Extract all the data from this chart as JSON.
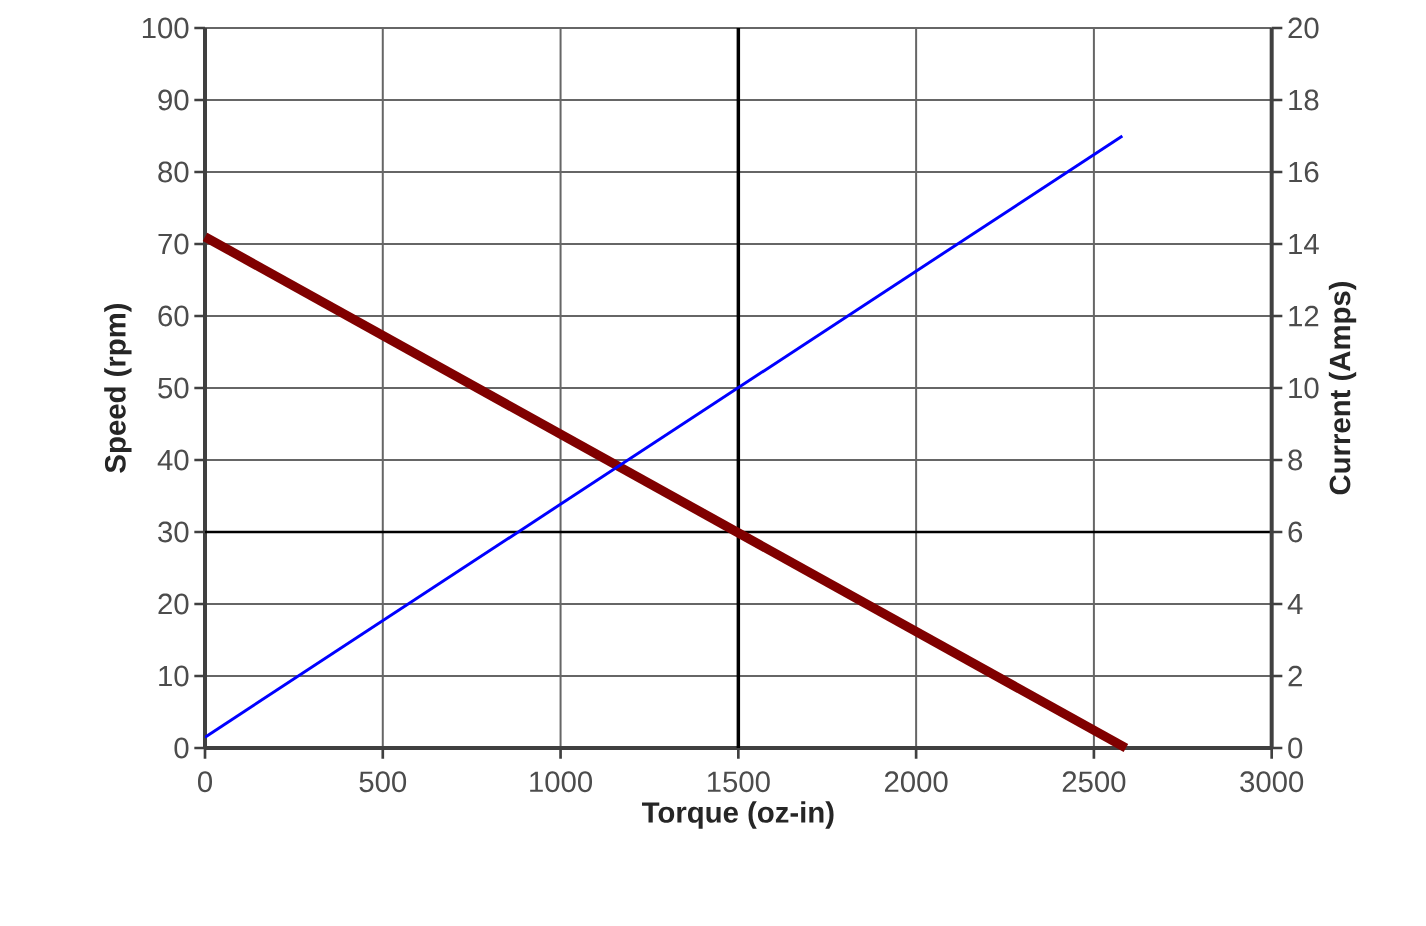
{
  "chart_data": {
    "type": "line",
    "xlabel": "Torque (oz-in)",
    "ylabel": "Speed (rpm)",
    "y2label": "Current (Amps)",
    "xlim": [
      0,
      3000
    ],
    "xticks": [
      0,
      500,
      1000,
      1500,
      2000,
      2500,
      3000
    ],
    "ylim": [
      0,
      100
    ],
    "yticks": [
      0,
      10,
      20,
      30,
      40,
      50,
      60,
      70,
      80,
      90,
      100
    ],
    "y2lim": [
      0,
      20
    ],
    "y2ticks": [
      0,
      2,
      4,
      6,
      8,
      10,
      12,
      14,
      16,
      18,
      20
    ],
    "grid": true,
    "marker": "none",
    "line_style": "solid",
    "ref_lines": [
      {
        "axis": "x",
        "value": 1500,
        "color": "#000000"
      },
      {
        "axis": "y",
        "value": 30,
        "color": "#000000"
      }
    ],
    "series": [
      {
        "color": "#800000",
        "x": [
          0,
          2590
        ],
        "values": [
          71,
          0
        ]
      },
      {
        "color": "#0000ff",
        "x": [
          0,
          2580
        ],
        "values": [
          0.3,
          17
        ],
        "axis": "y2"
      }
    ]
  }
}
